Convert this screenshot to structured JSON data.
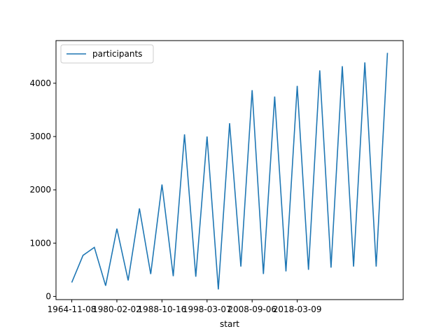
{
  "chart_data": {
    "type": "line",
    "title": "",
    "xlabel": "start",
    "ylabel": "",
    "x_tick_labels": [
      "1964-11-08",
      "1980-02-02",
      "1988-10-16",
      "1998-03-07",
      "2008-09-06",
      "2018-03-09"
    ],
    "x_tick_positions": [
      0,
      4,
      8,
      12,
      16,
      20
    ],
    "y_ticks": [
      0,
      1000,
      2000,
      3000,
      4000
    ],
    "ylim": [
      -60,
      4800
    ],
    "xlim": [
      -1.4,
      29.4
    ],
    "grid": false,
    "legend": {
      "position": "top-left",
      "entries": [
        "participants"
      ]
    },
    "series": [
      {
        "name": "participants",
        "color": "#1f77b4",
        "x": [
          0,
          1,
          2,
          3,
          4,
          5,
          6,
          7,
          8,
          9,
          10,
          11,
          12,
          13,
          14,
          15,
          16,
          17,
          18,
          19,
          20,
          21,
          22,
          23,
          24,
          25,
          26,
          27,
          28
        ],
        "values": [
          260,
          770,
          920,
          200,
          1270,
          300,
          1650,
          420,
          2100,
          380,
          3040,
          370,
          3000,
          130,
          3250,
          560,
          3870,
          420,
          3750,
          470,
          3950,
          500,
          4240,
          540,
          4320,
          560,
          4390,
          560,
          4570
        ]
      }
    ]
  }
}
